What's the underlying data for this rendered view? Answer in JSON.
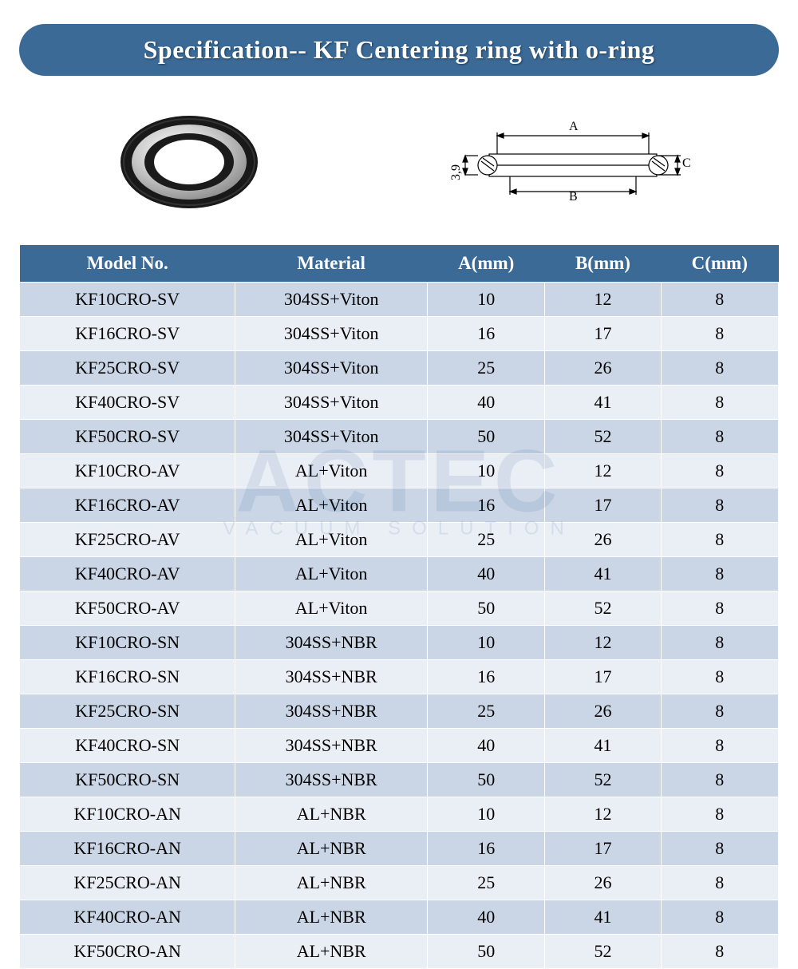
{
  "title": "Specification-- KF Centering ring with o-ring",
  "title_bar": {
    "bg_color": "#3b6a97",
    "text_color": "#ffffff",
    "text_shadow": "1px 1px 2px #1d3a55"
  },
  "watermark": {
    "main": "ACTEC",
    "sub": "VACUUM SOLUTION",
    "color": "#3b6a97"
  },
  "drawing_labels": {
    "a": "A",
    "b": "B",
    "c": "C",
    "side": "3,9"
  },
  "table": {
    "header_bg": "#3b6a97",
    "header_fg": "#ffffff",
    "row_even_bg": "#cad6e6",
    "row_odd_bg": "#eaeef5",
    "text_color": "#000000",
    "columns": [
      "Model No.",
      "Material",
      "A(mm)",
      "B(mm)",
      "C(mm)"
    ],
    "rows": [
      [
        "KF10CRO-SV",
        "304SS+Viton",
        "10",
        "12",
        "8"
      ],
      [
        "KF16CRO-SV",
        "304SS+Viton",
        "16",
        "17",
        "8"
      ],
      [
        "KF25CRO-SV",
        "304SS+Viton",
        "25",
        "26",
        "8"
      ],
      [
        "KF40CRO-SV",
        "304SS+Viton",
        "40",
        "41",
        "8"
      ],
      [
        "KF50CRO-SV",
        "304SS+Viton",
        "50",
        "52",
        "8"
      ],
      [
        "KF10CRO-AV",
        "AL+Viton",
        "10",
        "12",
        "8"
      ],
      [
        "KF16CRO-AV",
        "AL+Viton",
        "16",
        "17",
        "8"
      ],
      [
        "KF25CRO-AV",
        "AL+Viton",
        "25",
        "26",
        "8"
      ],
      [
        "KF40CRO-AV",
        "AL+Viton",
        "40",
        "41",
        "8"
      ],
      [
        "KF50CRO-AV",
        "AL+Viton",
        "50",
        "52",
        "8"
      ],
      [
        "KF10CRO-SN",
        "304SS+NBR",
        "10",
        "12",
        "8"
      ],
      [
        "KF16CRO-SN",
        "304SS+NBR",
        "16",
        "17",
        "8"
      ],
      [
        "KF25CRO-SN",
        "304SS+NBR",
        "25",
        "26",
        "8"
      ],
      [
        "KF40CRO-SN",
        "304SS+NBR",
        "40",
        "41",
        "8"
      ],
      [
        "KF50CRO-SN",
        "304SS+NBR",
        "50",
        "52",
        "8"
      ],
      [
        "KF10CRO-AN",
        "AL+NBR",
        "10",
        "12",
        "8"
      ],
      [
        "KF16CRO-AN",
        "AL+NBR",
        "16",
        "17",
        "8"
      ],
      [
        "KF25CRO-AN",
        "AL+NBR",
        "25",
        "26",
        "8"
      ],
      [
        "KF40CRO-AN",
        "AL+NBR",
        "40",
        "41",
        "8"
      ],
      [
        "KF50CRO-AN",
        "AL+NBR",
        "50",
        "52",
        "8"
      ]
    ]
  }
}
